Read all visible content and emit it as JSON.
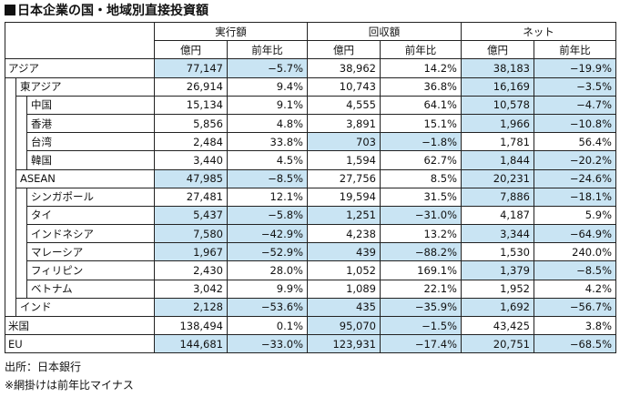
{
  "title": "日本企業の国・地域別直接投資額",
  "groups": [
    "実行額",
    "回収額",
    "ネット"
  ],
  "subheaders": [
    "億円",
    "前年比",
    "億円",
    "前年比",
    "億円",
    "前年比"
  ],
  "rows": [
    {
      "label": "アジア",
      "level": 0,
      "v": [
        "77,147",
        "−5.7%",
        "38,962",
        "14.2%",
        "38,183",
        "−19.9%"
      ],
      "shade": [
        true,
        true,
        false,
        false,
        true,
        true
      ]
    },
    {
      "label": "東アジア",
      "level": 1,
      "v": [
        "26,914",
        "9.4%",
        "10,743",
        "36.8%",
        "16,169",
        "−3.5%"
      ],
      "shade": [
        false,
        false,
        false,
        false,
        true,
        true
      ]
    },
    {
      "label": "中国",
      "level": 2,
      "v": [
        "15,134",
        "9.1%",
        "4,555",
        "64.1%",
        "10,578",
        "−4.7%"
      ],
      "shade": [
        false,
        false,
        false,
        false,
        true,
        true
      ]
    },
    {
      "label": "香港",
      "level": 2,
      "v": [
        "5,856",
        "4.8%",
        "3,891",
        "15.1%",
        "1,966",
        "−10.8%"
      ],
      "shade": [
        false,
        false,
        false,
        false,
        true,
        true
      ]
    },
    {
      "label": "台湾",
      "level": 2,
      "v": [
        "2,484",
        "33.8%",
        "703",
        "−1.8%",
        "1,781",
        "56.4%"
      ],
      "shade": [
        false,
        false,
        true,
        true,
        false,
        false
      ]
    },
    {
      "label": "韓国",
      "level": 2,
      "v": [
        "3,440",
        "4.5%",
        "1,594",
        "62.7%",
        "1,844",
        "−20.2%"
      ],
      "shade": [
        false,
        false,
        false,
        false,
        true,
        true
      ]
    },
    {
      "label": "ASEAN",
      "level": 1,
      "v": [
        "47,985",
        "−8.5%",
        "27,756",
        "8.5%",
        "20,231",
        "−24.6%"
      ],
      "shade": [
        true,
        true,
        false,
        false,
        true,
        true
      ]
    },
    {
      "label": "シンガポール",
      "level": 2,
      "v": [
        "27,481",
        "12.1%",
        "19,594",
        "31.5%",
        "7,886",
        "−18.1%"
      ],
      "shade": [
        false,
        false,
        false,
        false,
        true,
        true
      ]
    },
    {
      "label": "タイ",
      "level": 2,
      "v": [
        "5,437",
        "−5.8%",
        "1,251",
        "−31.0%",
        "4,187",
        "5.9%"
      ],
      "shade": [
        true,
        true,
        true,
        true,
        false,
        false
      ]
    },
    {
      "label": "インドネシア",
      "level": 2,
      "v": [
        "7,580",
        "−42.9%",
        "4,238",
        "13.2%",
        "3,344",
        "−64.9%"
      ],
      "shade": [
        true,
        true,
        false,
        false,
        true,
        true
      ]
    },
    {
      "label": "マレーシア",
      "level": 2,
      "v": [
        "1,967",
        "−52.9%",
        "439",
        "−88.2%",
        "1,530",
        "240.0%"
      ],
      "shade": [
        true,
        true,
        true,
        true,
        false,
        false
      ]
    },
    {
      "label": "フィリピン",
      "level": 2,
      "v": [
        "2,430",
        "28.0%",
        "1,052",
        "169.1%",
        "1,379",
        "−8.5%"
      ],
      "shade": [
        false,
        false,
        false,
        false,
        true,
        true
      ]
    },
    {
      "label": "ベトナム",
      "level": 2,
      "v": [
        "3,042",
        "9.9%",
        "1,089",
        "22.1%",
        "1,952",
        "4.2%"
      ],
      "shade": [
        false,
        false,
        false,
        false,
        false,
        false
      ]
    },
    {
      "label": "インド",
      "level": 1,
      "v": [
        "2,128",
        "−53.6%",
        "435",
        "−35.9%",
        "1,692",
        "−56.7%"
      ],
      "shade": [
        true,
        true,
        true,
        true,
        true,
        true
      ]
    },
    {
      "label": "米国",
      "level": 0,
      "v": [
        "138,494",
        "0.1%",
        "95,070",
        "−1.5%",
        "43,425",
        "3.8%"
      ],
      "shade": [
        false,
        false,
        true,
        true,
        false,
        false
      ]
    },
    {
      "label": "EU",
      "level": 0,
      "v": [
        "144,681",
        "−33.0%",
        "123,931",
        "−17.4%",
        "20,751",
        "−68.5%"
      ],
      "shade": [
        true,
        true,
        true,
        true,
        true,
        true
      ]
    }
  ],
  "notes": [
    "出所：日本銀行",
    "※網掛けは前年比マイナス"
  ],
  "colors": {
    "shade": "#c9e4f3",
    "border": "#222222"
  }
}
